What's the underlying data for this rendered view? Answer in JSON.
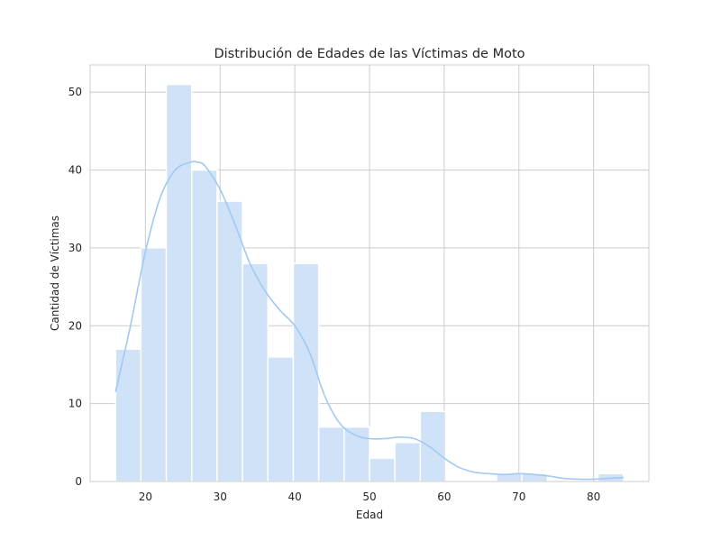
{
  "chart_data": {
    "type": "bar",
    "subtype": "histogram-with-kde",
    "title": "Distribución de Edades de las Víctimas de Moto",
    "xlabel": "Edad",
    "ylabel": "Cantidad de Víctimas",
    "xlim": [
      12.6,
      87.4
    ],
    "ylim": [
      0,
      53.5
    ],
    "xticks": [
      20,
      30,
      40,
      50,
      60,
      70,
      80
    ],
    "yticks": [
      0,
      10,
      20,
      30,
      40,
      50
    ],
    "grid": true,
    "bar_color": "#cfe2f7",
    "bar_edge_color": "#ffffff",
    "kde_color": "#a1c9f4",
    "bins": [
      {
        "start": 16.0,
        "end": 19.4,
        "count": 17
      },
      {
        "start": 19.4,
        "end": 22.8,
        "count": 30
      },
      {
        "start": 22.8,
        "end": 26.2,
        "count": 51
      },
      {
        "start": 26.2,
        "end": 29.6,
        "count": 40
      },
      {
        "start": 29.6,
        "end": 33.0,
        "count": 36
      },
      {
        "start": 33.0,
        "end": 36.4,
        "count": 28
      },
      {
        "start": 36.4,
        "end": 39.8,
        "count": 16
      },
      {
        "start": 39.8,
        "end": 43.2,
        "count": 28
      },
      {
        "start": 43.2,
        "end": 46.6,
        "count": 7
      },
      {
        "start": 46.6,
        "end": 50.0,
        "count": 7
      },
      {
        "start": 50.0,
        "end": 53.4,
        "count": 3
      },
      {
        "start": 53.4,
        "end": 56.8,
        "count": 5
      },
      {
        "start": 56.8,
        "end": 60.2,
        "count": 9
      },
      {
        "start": 60.2,
        "end": 63.6,
        "count": 0
      },
      {
        "start": 63.6,
        "end": 67.0,
        "count": 0
      },
      {
        "start": 67.0,
        "end": 70.4,
        "count": 1
      },
      {
        "start": 70.4,
        "end": 73.8,
        "count": 1
      },
      {
        "start": 73.8,
        "end": 77.2,
        "count": 0
      },
      {
        "start": 77.2,
        "end": 80.6,
        "count": 0
      },
      {
        "start": 80.6,
        "end": 84.0,
        "count": 1
      }
    ],
    "kde": {
      "x": [
        16,
        18,
        20,
        22,
        24,
        26,
        27,
        28,
        30,
        32,
        34,
        36,
        38,
        40,
        42,
        44,
        46,
        48,
        50,
        52,
        54,
        56,
        58,
        60,
        62,
        64,
        66,
        68,
        70,
        72,
        74,
        76,
        78,
        80,
        82,
        84
      ],
      "y": [
        11.5,
        20,
        29.5,
        36.5,
        40,
        41,
        41,
        40.5,
        37.5,
        33,
        28,
        24.5,
        22,
        20,
        16.5,
        11,
        7.5,
        6,
        5.5,
        5.5,
        5.7,
        5.5,
        4.5,
        3,
        1.8,
        1.2,
        1.0,
        0.9,
        1.0,
        0.9,
        0.7,
        0.4,
        0.3,
        0.3,
        0.4,
        0.5
      ]
    }
  }
}
